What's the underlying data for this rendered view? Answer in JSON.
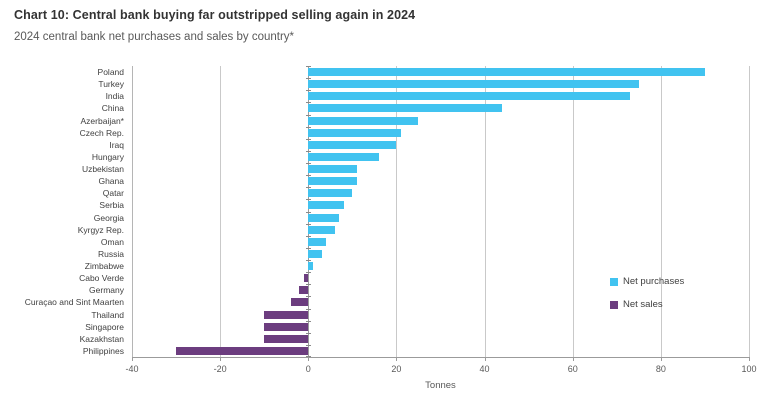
{
  "header": {
    "title": "Chart 10: Central bank buying far outstripped selling again in 2024",
    "subtitle": "2024 central bank net purchases and sales by country*"
  },
  "legend": {
    "net_purchases_label": "Net purchases",
    "net_sales_label": "Net sales"
  },
  "colors": {
    "net_purchases": "#41C3F0",
    "net_sales": "#6C3D7F",
    "gridline": "#c9c9c9",
    "axis": "#9b9b9b"
  },
  "chart_data": {
    "type": "bar",
    "orientation": "horizontal",
    "title": "Chart 10: Central bank buying far outstripped selling again in 2024",
    "subtitle": "2024 central bank net purchases and sales by country*",
    "xlabel": "Tonnes",
    "ylabel": "",
    "xlim": [
      -40,
      100
    ],
    "xticks": [
      -40,
      -20,
      0,
      20,
      40,
      60,
      80,
      100
    ],
    "grid": true,
    "legend_position": "middle-right",
    "categories": [
      "Poland",
      "Turkey",
      "India",
      "China",
      "Azerbaijan*",
      "Czech Rep.",
      "Iraq",
      "Hungary",
      "Uzbekistan",
      "Ghana",
      "Qatar",
      "Serbia",
      "Georgia",
      "Kyrgyz Rep.",
      "Oman",
      "Russia",
      "Zimbabwe",
      "Cabo Verde",
      "Germany",
      "Curaçao and Sint Maarten",
      "Thailand",
      "Singapore",
      "Kazakhstan",
      "Philippines"
    ],
    "values": [
      90,
      75,
      73,
      44,
      25,
      21,
      20,
      16,
      11,
      11,
      10,
      8,
      7,
      6,
      4,
      3,
      1,
      -1,
      -2,
      -4,
      -10,
      -10,
      -10,
      -30
    ],
    "series": [
      {
        "name": "Net purchases",
        "color": "#41C3F0",
        "rule": "values >= 0"
      },
      {
        "name": "Net sales",
        "color": "#6C3D7F",
        "rule": "values < 0"
      }
    ]
  }
}
